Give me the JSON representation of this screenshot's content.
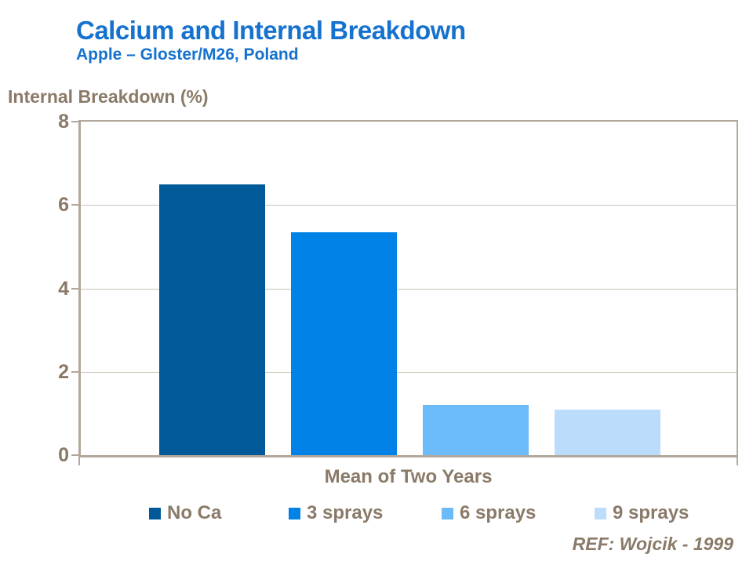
{
  "slide": {
    "title": "Calcium and Internal Breakdown",
    "subtitle": "Apple – Gloster/M26, Poland",
    "reference": "REF: Wojcik - 1999"
  },
  "colors": {
    "title_blue": "#1572CE",
    "text_brown": "#8A7A68",
    "axis_line": "#B1A79A",
    "gridline": "#CCC4B8",
    "bar_no_ca": "#005A99",
    "bar_3_sprays": "#0082E6",
    "bar_6_sprays": "#6BBAFA",
    "bar_9_sprays": "#BBDDFB"
  },
  "chart_data": {
    "type": "bar",
    "title": "Calcium and Internal Breakdown",
    "subtitle": "Apple – Gloster/M26, Poland",
    "ylabel": "Internal Breakdown (%)",
    "xlabel": "Mean of Two Years",
    "categories": [
      "Mean of Two Years"
    ],
    "series": [
      {
        "name": "No Ca",
        "values": [
          6.5
        ],
        "color": "#005A99"
      },
      {
        "name": "3 sprays",
        "values": [
          5.35
        ],
        "color": "#0082E6"
      },
      {
        "name": "6 sprays",
        "values": [
          1.2
        ],
        "color": "#6BBAFA"
      },
      {
        "name": "9 sprays",
        "values": [
          1.1
        ],
        "color": "#BBDDFB"
      }
    ],
    "ylim": [
      0,
      8
    ],
    "yticks": [
      0,
      2,
      4,
      6,
      8
    ],
    "grid": true,
    "legend_position": "bottom",
    "annotations": [
      "REF: Wojcik - 1999"
    ]
  }
}
